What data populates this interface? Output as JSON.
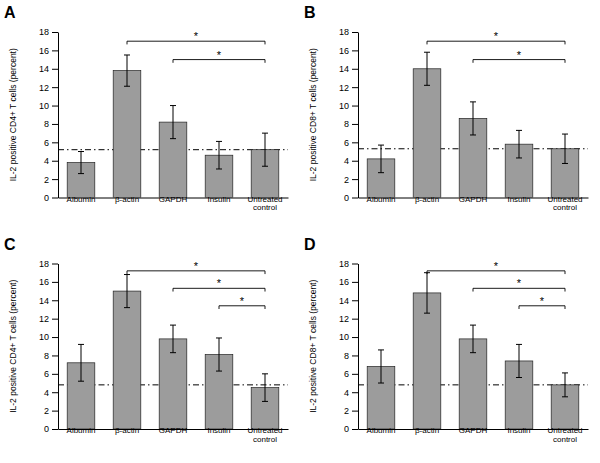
{
  "chart_data": [
    {
      "type": "bar",
      "title": "A",
      "y_label": "IL-2 positive CD4+ T cells (percent)",
      "categories": [
        "Albumin",
        "β-actin",
        "GAPDH",
        "Insulin",
        "Untreated\ncontrol"
      ],
      "values": [
        3.8,
        13.8,
        8.2,
        4.6,
        5.2
      ],
      "errors": [
        1.2,
        1.7,
        1.8,
        1.5,
        1.8
      ],
      "reference_line": 5.2,
      "significance": [
        {
          "from": "β-actin",
          "to": "Untreated\ncontrol",
          "y": 17.0,
          "label": "*"
        },
        {
          "from": "GAPDH",
          "to": "Untreated\ncontrol",
          "y": 15.0,
          "label": "*"
        }
      ],
      "color": "#9c9c9c",
      "ylim": [
        0,
        18
      ],
      "yticks": [
        0,
        2,
        4,
        6,
        8,
        10,
        12,
        14,
        16,
        18
      ],
      "grid": false
    },
    {
      "type": "bar",
      "title": "B",
      "y_label": "IL-2 positive CD8+ T cells (percent)",
      "categories": [
        "Albumin",
        "β-actin",
        "GAPDH",
        "Insulin",
        "Untreated\ncontrol"
      ],
      "values": [
        4.2,
        14.0,
        8.6,
        5.8,
        5.3
      ],
      "errors": [
        1.5,
        1.8,
        1.8,
        1.5,
        1.6
      ],
      "reference_line": 5.3,
      "significance": [
        {
          "from": "β-actin",
          "to": "Untreated\ncontrol",
          "y": 17.0,
          "label": "*"
        },
        {
          "from": "GAPDH",
          "to": "Untreated\ncontrol",
          "y": 15.0,
          "label": "*"
        }
      ],
      "color": "#9c9c9c",
      "ylim": [
        0,
        18
      ],
      "yticks": [
        0,
        2,
        4,
        6,
        8,
        10,
        12,
        14,
        16,
        18
      ],
      "grid": false
    },
    {
      "type": "bar",
      "title": "C",
      "y_label": "IL-2 positive CD4+ T cells (percent)",
      "categories": [
        "Albumin",
        "β-actin",
        "GAPDH",
        "Insulin",
        "Untreated\ncontrol"
      ],
      "values": [
        7.2,
        15.0,
        9.8,
        8.1,
        4.5
      ],
      "errors": [
        2.0,
        1.8,
        1.5,
        1.8,
        1.5
      ],
      "reference_line": 4.8,
      "significance": [
        {
          "from": "β-actin",
          "to": "Untreated\ncontrol",
          "y": 17.2,
          "label": "*"
        },
        {
          "from": "GAPDH",
          "to": "Untreated\ncontrol",
          "y": 15.3,
          "label": "*"
        },
        {
          "from": "Insulin",
          "to": "Untreated\ncontrol",
          "y": 13.4,
          "label": "*"
        }
      ],
      "color": "#9c9c9c",
      "ylim": [
        0,
        18
      ],
      "yticks": [
        0,
        2,
        4,
        6,
        8,
        10,
        12,
        14,
        16,
        18
      ],
      "grid": false
    },
    {
      "type": "bar",
      "title": "D",
      "y_label": "IL-2 positive CD8+ T cells (percent)",
      "categories": [
        "Albumin",
        "β-actin",
        "GAPDH",
        "Insulin",
        "Untreated\ncontrol"
      ],
      "values": [
        6.8,
        14.8,
        9.8,
        7.4,
        4.8
      ],
      "errors": [
        1.8,
        2.2,
        1.5,
        1.8,
        1.3
      ],
      "reference_line": 4.8,
      "significance": [
        {
          "from": "β-actin",
          "to": "Untreated\ncontrol",
          "y": 17.2,
          "label": "*"
        },
        {
          "from": "GAPDH",
          "to": "Untreated\ncontrol",
          "y": 15.3,
          "label": "*"
        },
        {
          "from": "Insulin",
          "to": "Untreated\ncontrol",
          "y": 13.4,
          "label": "*"
        }
      ],
      "color": "#9c9c9c",
      "ylim": [
        0,
        18
      ],
      "yticks": [
        0,
        2,
        4,
        6,
        8,
        10,
        12,
        14,
        16,
        18
      ],
      "grid": false
    }
  ]
}
